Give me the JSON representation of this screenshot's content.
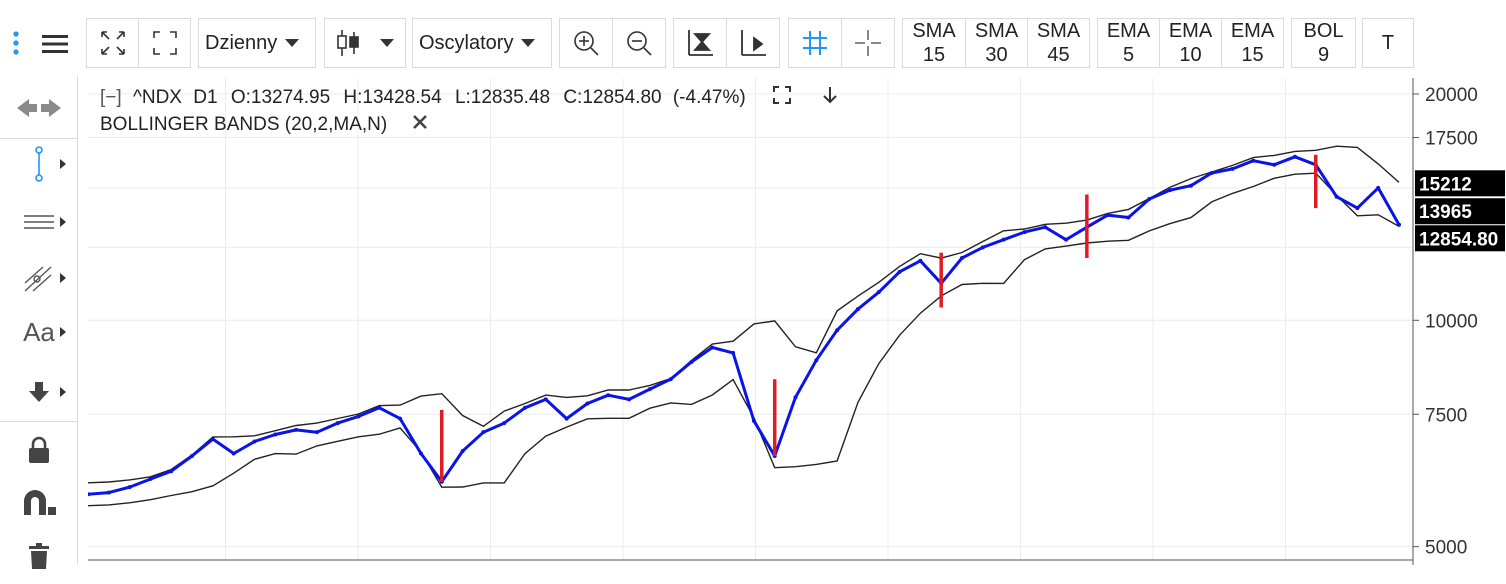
{
  "toolbar": {
    "interval_label": "Dzienny",
    "oscillators_label": "Oscylatory",
    "indicators": [
      {
        "name": "SMA",
        "period": "15"
      },
      {
        "name": "SMA",
        "period": "30"
      },
      {
        "name": "SMA",
        "period": "45"
      },
      {
        "name": "EMA",
        "period": "5"
      },
      {
        "name": "EMA",
        "period": "10"
      },
      {
        "name": "EMA",
        "period": "15"
      },
      {
        "name": "BOL",
        "period": "9"
      }
    ],
    "text_button": "T"
  },
  "sidebar": {
    "tools": [
      "arrows-horizontal-icon",
      "line-tool-icon",
      "horizontal-lines-icon",
      "fib-tool-icon",
      "text-tool-icon",
      "arrow-down-tool-icon",
      "lock-icon",
      "magnet-icon",
      "trash-icon"
    ],
    "text_tool_label": "Aa"
  },
  "legend": {
    "collapse": "[−]",
    "symbol": "^NDX",
    "interval": "D1",
    "open": "O:13274.95",
    "high": "H:13428.54",
    "low": "L:12835.48",
    "close": "C:12854.80",
    "change": "(-4.47%)",
    "indicator_label": "BOLLINGER BANDS (20,2,MA,N)"
  },
  "colors": {
    "price": "#0b14e6",
    "bands": "#222222",
    "markers": "#e01b24",
    "badge_bg": "#000000",
    "accent": "#2196f3"
  },
  "chart_data": {
    "type": "line",
    "y_scale": "log",
    "ylim": [
      4800,
      21000
    ],
    "y_ticks": [
      20000,
      17500,
      10000,
      7500,
      5000
    ],
    "price_badges": [
      "15212",
      "13965",
      "12854.80"
    ],
    "price_badge_values": [
      15212,
      13965,
      12854.8
    ],
    "series": [
      {
        "name": "^NDX",
        "values": [
          5870,
          5900,
          6000,
          6150,
          6300,
          6600,
          6950,
          6650,
          6900,
          7050,
          7150,
          7100,
          7300,
          7450,
          7650,
          7400,
          6650,
          6100,
          6700,
          7100,
          7300,
          7650,
          7850,
          7400,
          7750,
          7950,
          7850,
          8100,
          8350,
          8800,
          9200,
          9050,
          7350,
          6600,
          7900,
          8850,
          9700,
          10350,
          10900,
          11600,
          12000,
          11200,
          12100,
          12500,
          12800,
          13100,
          13300,
          12800,
          13300,
          13800,
          13700,
          14500,
          14900,
          15100,
          15700,
          15900,
          16300,
          16100,
          16500,
          16100,
          14600,
          14100,
          15000,
          13400
        ]
      }
    ],
    "markers": [
      {
        "index": 17,
        "high": 7600,
        "low": 6100
      },
      {
        "index": 33,
        "high": 8350,
        "low": 6600
      },
      {
        "index": 41,
        "high": 12300,
        "low": 10400
      },
      {
        "index": 48,
        "high": 14700,
        "low": 12100
      },
      {
        "index": 59,
        "high": 16600,
        "low": 14100
      }
    ]
  }
}
